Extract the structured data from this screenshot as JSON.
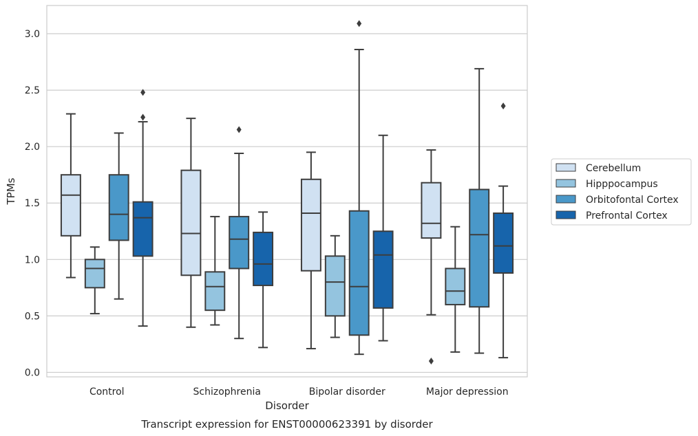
{
  "chart_data": {
    "type": "box",
    "caption": "Transcript expression for ENST00000623391 by disorder",
    "xlabel": "Disorder",
    "ylabel": "TPMs",
    "ylim": [
      -0.04,
      3.25
    ],
    "yticks": [
      "0.0",
      "0.5",
      "1.0",
      "1.5",
      "2.0",
      "2.5",
      "3.0"
    ],
    "grid": true,
    "legend_position": "right",
    "categories": [
      "Control",
      "Schizophrenia",
      "Bipolar disorder",
      "Major depression"
    ],
    "series": [
      {
        "name": "Cerebellum",
        "color": "#d0e1f2",
        "boxes": [
          {
            "whisker_low": 0.84,
            "q1": 1.21,
            "median": 1.57,
            "q3": 1.75,
            "whisker_high": 2.29,
            "outliers": []
          },
          {
            "whisker_low": 0.4,
            "q1": 0.86,
            "median": 1.23,
            "q3": 1.79,
            "whisker_high": 2.25,
            "outliers": []
          },
          {
            "whisker_low": 0.21,
            "q1": 0.9,
            "median": 1.41,
            "q3": 1.71,
            "whisker_high": 1.95,
            "outliers": []
          },
          {
            "whisker_low": 0.51,
            "q1": 1.19,
            "median": 1.32,
            "q3": 1.68,
            "whisker_high": 1.97,
            "outliers": [
              0.1
            ]
          }
        ]
      },
      {
        "name": "Hipppocampus",
        "color": "#94c4df",
        "boxes": [
          {
            "whisker_low": 0.52,
            "q1": 0.75,
            "median": 0.92,
            "q3": 1.0,
            "whisker_high": 1.11,
            "outliers": []
          },
          {
            "whisker_low": 0.42,
            "q1": 0.55,
            "median": 0.76,
            "q3": 0.89,
            "whisker_high": 1.38,
            "outliers": []
          },
          {
            "whisker_low": 0.31,
            "q1": 0.5,
            "median": 0.8,
            "q3": 1.03,
            "whisker_high": 1.21,
            "outliers": []
          },
          {
            "whisker_low": 0.18,
            "q1": 0.6,
            "median": 0.72,
            "q3": 0.92,
            "whisker_high": 1.29,
            "outliers": []
          }
        ]
      },
      {
        "name": "Orbitofontal Cortex",
        "color": "#4a98c9",
        "boxes": [
          {
            "whisker_low": 0.65,
            "q1": 1.17,
            "median": 1.4,
            "q3": 1.75,
            "whisker_high": 2.12,
            "outliers": []
          },
          {
            "whisker_low": 0.3,
            "q1": 0.92,
            "median": 1.18,
            "q3": 1.38,
            "whisker_high": 1.94,
            "outliers": [
              2.15
            ]
          },
          {
            "whisker_low": 0.16,
            "q1": 0.33,
            "median": 0.76,
            "q3": 1.43,
            "whisker_high": 2.86,
            "outliers": [
              3.09
            ]
          },
          {
            "whisker_low": 0.17,
            "q1": 0.58,
            "median": 1.22,
            "q3": 1.62,
            "whisker_high": 2.69,
            "outliers": []
          }
        ]
      },
      {
        "name": "Prefrontal Cortex",
        "color": "#1764ab",
        "boxes": [
          {
            "whisker_low": 0.41,
            "q1": 1.03,
            "median": 1.37,
            "q3": 1.51,
            "whisker_high": 2.22,
            "outliers": [
              2.26,
              2.48
            ]
          },
          {
            "whisker_low": 0.22,
            "q1": 0.77,
            "median": 0.96,
            "q3": 1.24,
            "whisker_high": 1.42,
            "outliers": []
          },
          {
            "whisker_low": 0.28,
            "q1": 0.57,
            "median": 1.04,
            "q3": 1.25,
            "whisker_high": 2.1,
            "outliers": []
          },
          {
            "whisker_low": 0.13,
            "q1": 0.88,
            "median": 1.12,
            "q3": 1.41,
            "whisker_high": 1.65,
            "outliers": [
              2.36
            ]
          }
        ]
      }
    ]
  }
}
